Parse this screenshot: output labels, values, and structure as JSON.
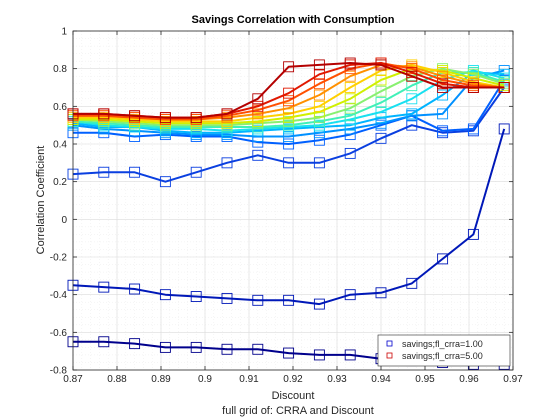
{
  "chart_data": {
    "type": "line",
    "title": "Savings Correlation with Consumption",
    "xlabel": "Discount",
    "ylabel": "Correlation Coefficient",
    "caption": "full grid of: CRRA and Discount",
    "xlim": [
      0.87,
      0.97
    ],
    "ylim": [
      -0.8,
      1.0
    ],
    "xticks": [
      "0.87",
      "0.88",
      "0.89",
      "0.9",
      "0.91",
      "0.92",
      "0.93",
      "0.94",
      "0.95",
      "0.96",
      "0.97"
    ],
    "yticks": [
      "-0.8",
      "-0.6",
      "-0.4",
      "-0.2",
      "0",
      "0.2",
      "0.4",
      "0.6",
      "0.8",
      "1"
    ],
    "grid": true,
    "minor_grid": true,
    "legend_position": "bottom-right",
    "legend": [
      {
        "label": "savings;fl_crra=1.00",
        "color": "#0000cd"
      },
      {
        "label": "savings;fl_crra=5.00",
        "color": "#cc0000"
      }
    ],
    "x": [
      0.87,
      0.877,
      0.884,
      0.891,
      0.898,
      0.905,
      0.912,
      0.919,
      0.926,
      0.933,
      0.94,
      0.947,
      0.954,
      0.961,
      0.968
    ],
    "series": [
      {
        "color": "#00008c",
        "values": [
          -0.65,
          -0.65,
          -0.66,
          -0.68,
          -0.68,
          -0.69,
          -0.69,
          -0.71,
          -0.72,
          -0.72,
          -0.74,
          -0.75,
          -0.76,
          -0.77,
          -0.77
        ]
      },
      {
        "color": "#0018b8",
        "values": [
          -0.35,
          -0.36,
          -0.37,
          -0.4,
          -0.41,
          -0.42,
          -0.43,
          -0.43,
          -0.45,
          -0.4,
          -0.39,
          -0.34,
          -0.21,
          -0.08,
          0.48
        ]
      },
      {
        "color": "#0a3fe0",
        "values": [
          0.24,
          0.25,
          0.25,
          0.2,
          0.25,
          0.3,
          0.34,
          0.3,
          0.3,
          0.35,
          0.43,
          0.5,
          0.46,
          0.47,
          0.7
        ]
      },
      {
        "color": "#0060ff",
        "values": [
          0.46,
          0.46,
          0.44,
          0.45,
          0.44,
          0.44,
          0.41,
          0.4,
          0.42,
          0.45,
          0.5,
          0.55,
          0.47,
          0.48,
          0.74
        ]
      },
      {
        "color": "#0090ff",
        "values": [
          0.5,
          0.48,
          0.47,
          0.46,
          0.45,
          0.45,
          0.44,
          0.44,
          0.46,
          0.48,
          0.51,
          0.55,
          0.56,
          0.75,
          0.79
        ]
      },
      {
        "color": "#00b4ff",
        "values": [
          0.51,
          0.49,
          0.49,
          0.47,
          0.46,
          0.46,
          0.47,
          0.48,
          0.49,
          0.5,
          0.54,
          0.56,
          0.66,
          0.78,
          0.77
        ]
      },
      {
        "color": "#18e0f0",
        "values": [
          0.52,
          0.5,
          0.49,
          0.48,
          0.48,
          0.47,
          0.48,
          0.49,
          0.5,
          0.53,
          0.57,
          0.64,
          0.74,
          0.79,
          0.75
        ]
      },
      {
        "color": "#40f0b8",
        "values": [
          0.52,
          0.51,
          0.5,
          0.49,
          0.49,
          0.49,
          0.49,
          0.5,
          0.52,
          0.55,
          0.62,
          0.71,
          0.78,
          0.78,
          0.73
        ]
      },
      {
        "color": "#88f070",
        "values": [
          0.53,
          0.52,
          0.51,
          0.5,
          0.5,
          0.5,
          0.51,
          0.52,
          0.54,
          0.59,
          0.68,
          0.76,
          0.8,
          0.77,
          0.72
        ]
      },
      {
        "color": "#d0f000",
        "values": [
          0.53,
          0.53,
          0.52,
          0.51,
          0.51,
          0.51,
          0.52,
          0.54,
          0.57,
          0.64,
          0.74,
          0.8,
          0.79,
          0.75,
          0.71
        ]
      },
      {
        "color": "#ffd000",
        "values": [
          0.54,
          0.54,
          0.53,
          0.52,
          0.52,
          0.52,
          0.54,
          0.56,
          0.6,
          0.7,
          0.79,
          0.82,
          0.78,
          0.73,
          0.7
        ]
      },
      {
        "color": "#ff9000",
        "values": [
          0.55,
          0.55,
          0.54,
          0.53,
          0.53,
          0.54,
          0.56,
          0.59,
          0.66,
          0.76,
          0.82,
          0.81,
          0.76,
          0.72,
          0.7
        ]
      },
      {
        "color": "#ff5000",
        "values": [
          0.55,
          0.55,
          0.54,
          0.53,
          0.53,
          0.55,
          0.58,
          0.63,
          0.72,
          0.8,
          0.83,
          0.8,
          0.74,
          0.71,
          0.7
        ]
      },
      {
        "color": "#e01800",
        "values": [
          0.56,
          0.56,
          0.55,
          0.54,
          0.54,
          0.56,
          0.6,
          0.67,
          0.77,
          0.82,
          0.83,
          0.78,
          0.72,
          0.7,
          0.7
        ]
      },
      {
        "color": "#b40000",
        "values": [
          0.56,
          0.56,
          0.55,
          0.54,
          0.54,
          0.56,
          0.64,
          0.81,
          0.82,
          0.83,
          0.82,
          0.76,
          0.7,
          0.7,
          0.7
        ]
      }
    ]
  }
}
